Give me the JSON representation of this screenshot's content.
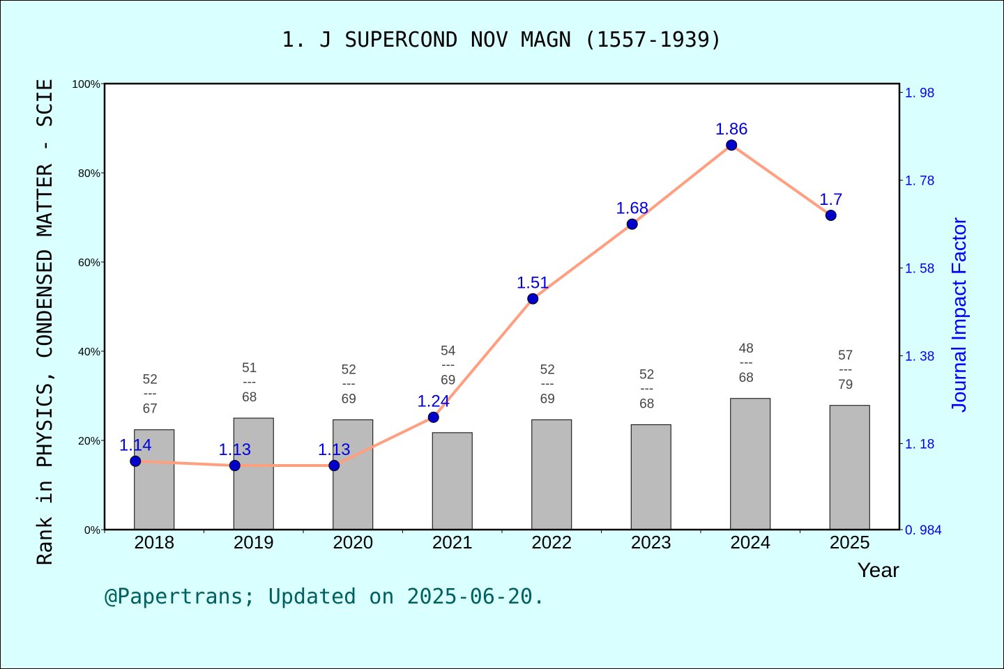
{
  "chart_data": {
    "type": "bar+line",
    "title": "1. J SUPERCOND NOV MAGN (1557-1939)",
    "xlabel": "Year",
    "ylabel_left": "Rank in PHYSICS, CONDENSED MATTER - SCIE",
    "ylabel_right": "Journal Impact Factor",
    "categories": [
      "2018",
      "2019",
      "2020",
      "2021",
      "2022",
      "2023",
      "2024",
      "2025"
    ],
    "left_axis": {
      "ylim": [
        0,
        100
      ],
      "ticks": [
        "0%",
        "20%",
        "40%",
        "60%",
        "80%",
        "100%"
      ],
      "tick_values": [
        0,
        20,
        40,
        60,
        80,
        100
      ]
    },
    "right_axis": {
      "ylim": [
        0.984,
        2.0
      ],
      "ticks": [
        "0.984",
        "1.18",
        "1.38",
        "1.58",
        "1.78",
        "1.98"
      ],
      "tick_values": [
        0.984,
        1.18,
        1.38,
        1.58,
        1.78,
        1.98
      ]
    },
    "bars": {
      "rank": [
        52,
        51,
        52,
        54,
        52,
        52,
        48,
        57
      ],
      "total": [
        67,
        68,
        69,
        69,
        69,
        68,
        68,
        79
      ],
      "percentile_values": [
        22.4,
        25.0,
        24.6,
        21.7,
        24.6,
        23.5,
        29.4,
        27.8
      ],
      "color": "#bbbbbb"
    },
    "line": {
      "values": [
        1.14,
        1.13,
        1.13,
        1.24,
        1.51,
        1.68,
        1.86,
        1.7
      ],
      "labels": [
        "1.14",
        "1.13",
        "1.13",
        "1.24",
        "1.51",
        "1.68",
        "1.86",
        "1.7"
      ],
      "line_color": "#ff9f80",
      "marker_color": "#0000cc",
      "label_color": "#0000dd"
    },
    "grid": false
  },
  "footer": "@Papertrans; Updated on 2025-06-20."
}
